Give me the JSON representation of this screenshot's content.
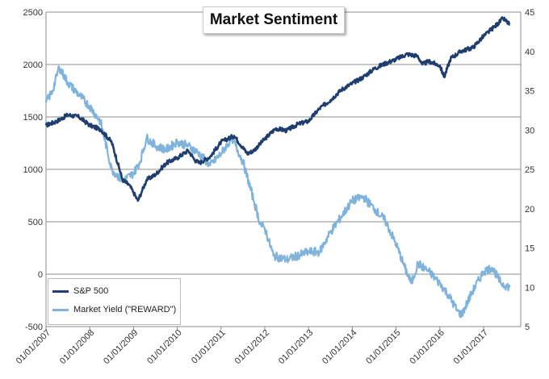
{
  "chart_data": {
    "type": "line",
    "title": "Market Sentiment",
    "x_tick_labels": [
      "01/01/2007",
      "01/01/2008",
      "01/01/2009",
      "01/01/2010",
      "01/01/2011",
      "01/01/2012",
      "01/01/2013",
      "01/01/2014",
      "01/01/2015",
      "01/01/2016",
      "01/01/2017"
    ],
    "y_left": {
      "ylim": [
        -500,
        2500
      ],
      "ticks": [
        -500,
        0,
        500,
        1000,
        1500,
        2000,
        2500
      ]
    },
    "y_right": {
      "ylim": [
        5,
        45
      ],
      "ticks": [
        5,
        10,
        15,
        20,
        25,
        30,
        35,
        40,
        45
      ]
    },
    "grid": true,
    "legend_placement": "bottom-left",
    "series": [
      {
        "name": "S&P 500",
        "axis": "left",
        "color": "#1f3d6e",
        "x": [
          2007.0,
          2007.25,
          2007.5,
          2007.75,
          2008.0,
          2008.25,
          2008.5,
          2008.75,
          2008.9,
          2009.0,
          2009.1,
          2009.2,
          2009.3,
          2009.5,
          2009.75,
          2010.0,
          2010.25,
          2010.4,
          2010.5,
          2010.75,
          2011.0,
          2011.3,
          2011.6,
          2011.75,
          2012.0,
          2012.25,
          2012.5,
          2012.75,
          2013.0,
          2013.25,
          2013.5,
          2013.75,
          2014.0,
          2014.25,
          2014.5,
          2014.75,
          2015.0,
          2015.25,
          2015.5,
          2015.6,
          2015.75,
          2016.0,
          2016.1,
          2016.25,
          2016.5,
          2016.75,
          2017.0,
          2017.25,
          2017.45,
          2017.6
        ],
        "values": [
          1420,
          1460,
          1520,
          1500,
          1420,
          1380,
          1260,
          900,
          850,
          780,
          700,
          800,
          900,
          950,
          1060,
          1110,
          1180,
          1090,
          1060,
          1120,
          1260,
          1320,
          1150,
          1180,
          1290,
          1390,
          1370,
          1430,
          1460,
          1580,
          1660,
          1760,
          1820,
          1880,
          1960,
          2010,
          2050,
          2100,
          2080,
          2000,
          2030,
          1990,
          1880,
          2060,
          2130,
          2160,
          2270,
          2360,
          2440,
          2380
        ]
      },
      {
        "name": "Market Yield (\"REWARD\")",
        "axis": "right",
        "color": "#7fb3dc",
        "x": [
          2007.0,
          2007.15,
          2007.3,
          2007.5,
          2007.75,
          2008.0,
          2008.25,
          2008.5,
          2008.75,
          2009.0,
          2009.15,
          2009.3,
          2009.5,
          2009.75,
          2010.0,
          2010.25,
          2010.5,
          2010.75,
          2011.0,
          2011.25,
          2011.5,
          2011.75,
          2011.9,
          2012.0,
          2012.2,
          2012.5,
          2012.75,
          2013.0,
          2013.25,
          2013.5,
          2013.75,
          2014.0,
          2014.25,
          2014.5,
          2014.75,
          2015.0,
          2015.2,
          2015.35,
          2015.5,
          2015.75,
          2016.0,
          2016.2,
          2016.4,
          2016.5,
          2016.75,
          2017.0,
          2017.2,
          2017.4,
          2017.6
        ],
        "values": [
          33.5,
          35,
          38,
          36,
          34.5,
          33,
          31,
          25,
          23.5,
          24.5,
          26,
          29,
          28,
          27.5,
          28.5,
          28,
          27,
          25.5,
          27,
          29,
          26,
          21,
          18,
          17.5,
          14,
          13.5,
          14,
          14.5,
          14.5,
          17,
          19,
          21,
          21.5,
          20,
          18.5,
          15.5,
          12.5,
          10.5,
          13,
          12,
          10.5,
          9,
          7,
          6.5,
          9.5,
          12,
          12.5,
          10.5,
          10
        ]
      }
    ]
  },
  "legend": {
    "items": [
      {
        "label": "S&P 500",
        "color": "#1f3d6e"
      },
      {
        "label": "Market Yield (\"REWARD\")",
        "color": "#7fb3dc"
      }
    ]
  }
}
